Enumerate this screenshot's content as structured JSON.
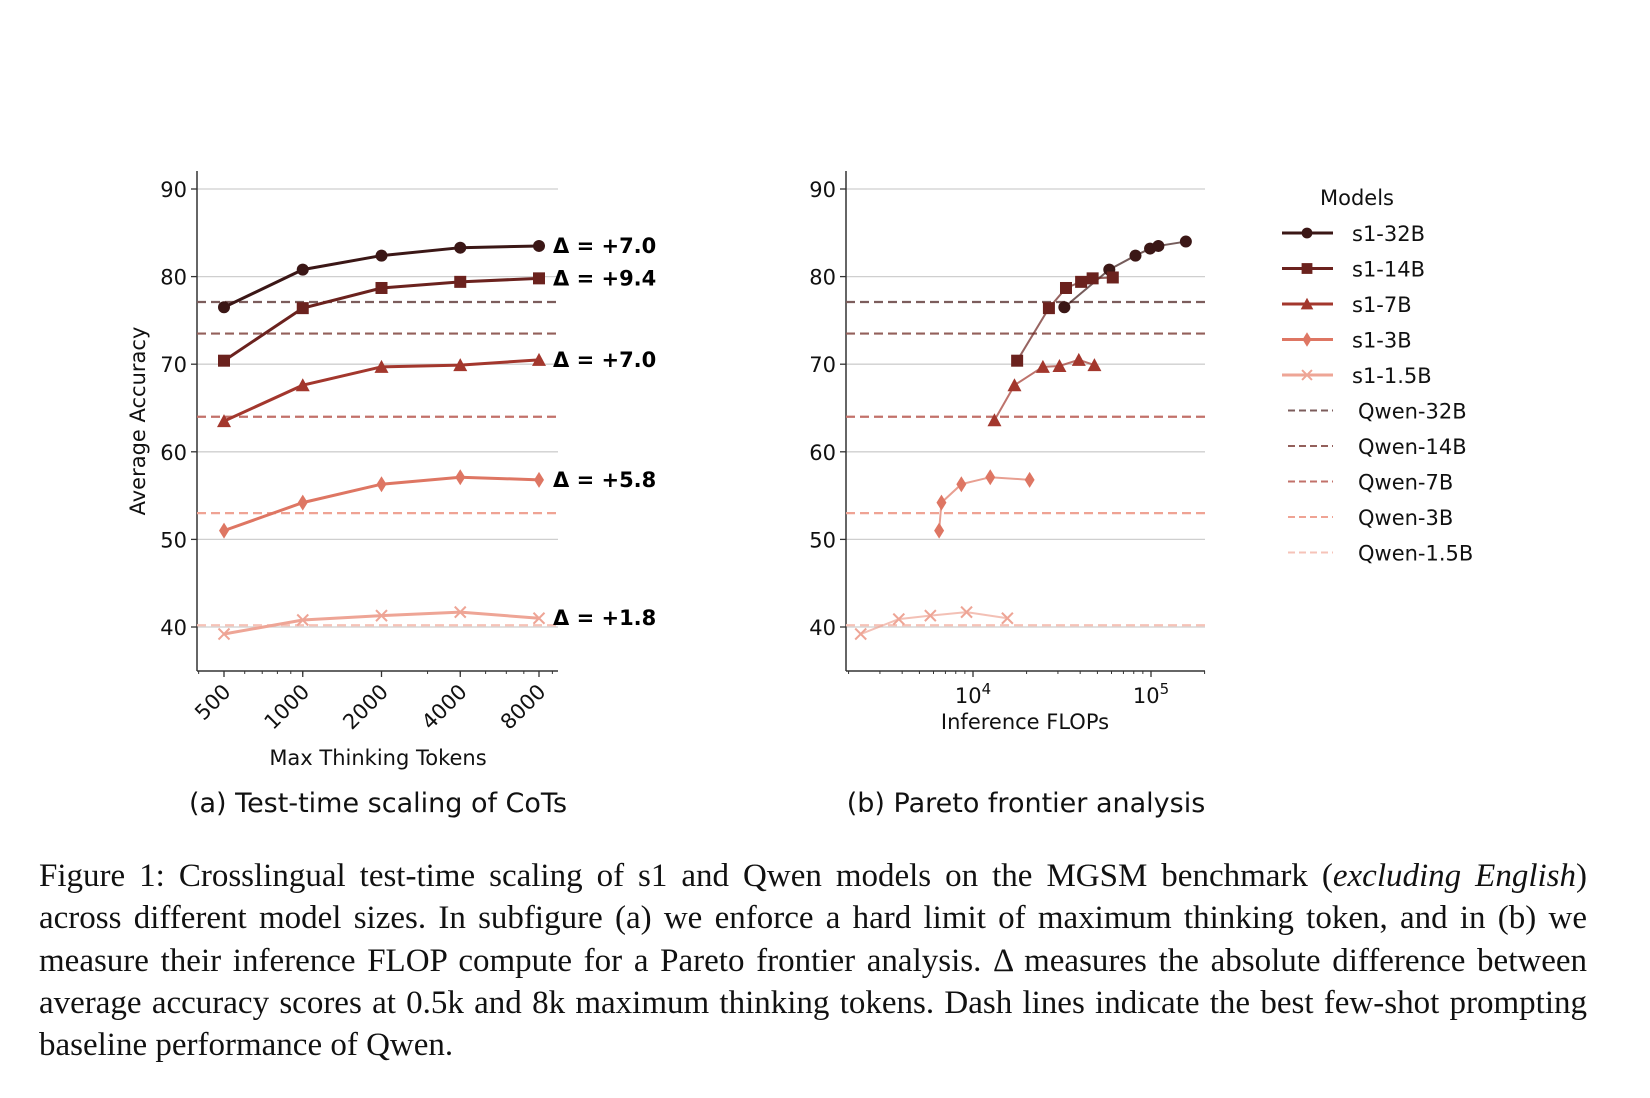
{
  "figure": {
    "subcaption_a": "(a) Test-time scaling of CoTs",
    "subcaption_b": "(b) Pareto frontier analysis",
    "caption": {
      "label": "Figure 1:",
      "part1": " Crosslingual test-time scaling of s1 and Qwen models on the MGSM benchmark (",
      "italic": "excluding English",
      "part2": ") across different model sizes. In subfigure (a) we enforce a hard limit of maximum thinking token, and in (b) we measure their inference FLOP compute for a Pareto frontier analysis. Δ measures the absolute difference between average accuracy scores at 0.5k and 8k maximum thinking tokens. Dash lines indicate the best few-shot prompting baseline performance of Qwen."
    }
  },
  "chart_data": [
    {
      "type": "line",
      "title": "(a) Test-time scaling of CoTs",
      "xlabel": "Max Thinking Tokens",
      "ylabel": "Average Accuracy",
      "xscale": "log2",
      "x": [
        500,
        1000,
        2000,
        4000,
        8000
      ],
      "x_tick_labels": [
        "500",
        "1000",
        "2000",
        "4000",
        "8000"
      ],
      "ylim": [
        35,
        92
      ],
      "y_ticks": [
        40,
        50,
        60,
        70,
        80,
        90
      ],
      "y_tick_labels": [
        "40",
        "50",
        "60",
        "70",
        "80",
        "90"
      ],
      "grid": "horizontal",
      "series": [
        {
          "name": "s1-32B",
          "marker": "circle",
          "color": "#3b1716",
          "values": [
            76.5,
            80.8,
            82.4,
            83.3,
            83.5
          ],
          "delta": "Δ = +7.0"
        },
        {
          "name": "s1-14B",
          "marker": "square",
          "color": "#6b221e",
          "values": [
            70.4,
            76.4,
            78.7,
            79.4,
            79.8
          ],
          "delta": "Δ = +9.4"
        },
        {
          "name": "s1-7B",
          "marker": "triangle",
          "color": "#a3372d",
          "values": [
            63.5,
            67.6,
            69.7,
            69.9,
            70.5
          ],
          "delta": "Δ = +7.0"
        },
        {
          "name": "s1-3B",
          "marker": "diamond",
          "color": "#de7663",
          "values": [
            51.0,
            54.2,
            56.3,
            57.1,
            56.8
          ],
          "delta": "Δ = +5.8"
        },
        {
          "name": "s1-1.5B",
          "marker": "x",
          "color": "#eea596",
          "values": [
            39.2,
            40.8,
            41.3,
            41.7,
            41.0
          ],
          "delta": "Δ = +1.8"
        }
      ],
      "baselines": [
        {
          "name": "Qwen-32B",
          "color": "#7c5d5c",
          "value": 77.1
        },
        {
          "name": "Qwen-14B",
          "color": "#93605b",
          "value": 73.5
        },
        {
          "name": "Qwen-7B",
          "color": "#c2716a",
          "value": 64.0
        },
        {
          "name": "Qwen-3B",
          "color": "#efa394",
          "value": 53.0
        },
        {
          "name": "Qwen-1.5B",
          "color": "#f6c3b8",
          "value": 40.2
        }
      ]
    },
    {
      "type": "line",
      "title": "(b) Pareto frontier analysis",
      "xlabel": "Inference FLOPs",
      "ylabel": "",
      "xscale": "log10",
      "xlim": [
        1860,
        195000
      ],
      "x_ticks": [
        10000,
        100000
      ],
      "x_tick_labels": [
        {
          "base": "10",
          "exp": "4"
        },
        {
          "base": "10",
          "exp": "5"
        }
      ],
      "ylim": [
        35,
        92
      ],
      "y_ticks": [
        40,
        50,
        60,
        70,
        80,
        90
      ],
      "y_tick_labels": [
        "40",
        "50",
        "60",
        "70",
        "80",
        "90"
      ],
      "grid": "horizontal",
      "series": [
        {
          "name": "s1-32B",
          "marker": "circle",
          "color": "#3b1716",
          "x": [
            32600,
            58300,
            81800,
            98800,
            110000,
            157000
          ],
          "values": [
            76.5,
            80.8,
            82.4,
            83.2,
            83.5,
            84.0
          ]
        },
        {
          "name": "s1-14B",
          "marker": "square",
          "color": "#6b221e",
          "x": [
            17700,
            26700,
            33300,
            40500,
            47000,
            61000
          ],
          "values": [
            70.4,
            76.4,
            78.7,
            79.4,
            79.8,
            79.9
          ]
        },
        {
          "name": "s1-7B",
          "marker": "triangle",
          "color": "#a3372d",
          "x": [
            13200,
            17100,
            24700,
            30600,
            39300,
            48100
          ],
          "values": [
            63.6,
            67.6,
            69.7,
            69.8,
            70.5,
            69.9
          ]
        },
        {
          "name": "s1-3B",
          "marker": "diamond",
          "color": "#de7663",
          "x": [
            6450,
            6650,
            8600,
            12500,
            20800
          ],
          "values": [
            51.0,
            54.2,
            56.3,
            57.1,
            56.8
          ]
        },
        {
          "name": "s1-1.5B",
          "marker": "x",
          "color": "#eea596",
          "x": [
            2340,
            3830,
            5760,
            9200,
            15600
          ],
          "values": [
            39.2,
            40.9,
            41.3,
            41.7,
            41.0
          ]
        }
      ],
      "baselines": [
        {
          "name": "Qwen-32B",
          "color": "#7c5d5c",
          "value": 77.1
        },
        {
          "name": "Qwen-14B",
          "color": "#93605b",
          "value": 73.5
        },
        {
          "name": "Qwen-7B",
          "color": "#c2716a",
          "value": 64.0
        },
        {
          "name": "Qwen-3B",
          "color": "#efa394",
          "value": 53.0
        },
        {
          "name": "Qwen-1.5B",
          "color": "#f6c3b8",
          "value": 40.2
        }
      ],
      "legend": {
        "title": "Models",
        "placement": "right"
      }
    }
  ]
}
